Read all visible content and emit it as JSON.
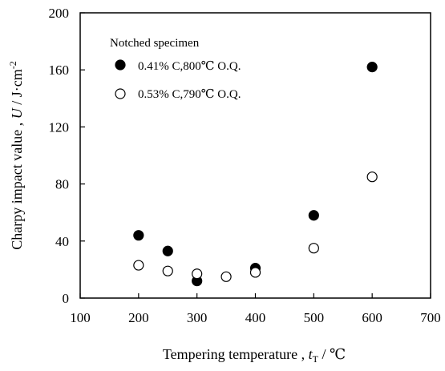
{
  "chart_data": {
    "type": "scatter",
    "title": "",
    "xlabel": "Tempering temperature , t_T / ℃",
    "xlabel_parts": {
      "text": "Tempering temperature , ",
      "symbol": "t",
      "sub": "T",
      "unit": " / ℃"
    },
    "ylabel": "Charpy impact value , U / J·cm^-2",
    "ylabel_parts": {
      "text": "Charpy impact value , ",
      "symbol": "U",
      "unit": " / J·cm",
      "sup": "-2"
    },
    "xlim": [
      100,
      700
    ],
    "ylim": [
      0,
      200
    ],
    "xticks": [
      100,
      200,
      300,
      400,
      500,
      600,
      700
    ],
    "yticks": [
      0,
      40,
      80,
      120,
      160,
      200
    ],
    "grid": false,
    "legend": {
      "title": "Notched specimen",
      "placement": "top-left"
    },
    "series": [
      {
        "name": "0.41% C,800℃ O.Q.",
        "marker": "filled-circle",
        "color": "#000000",
        "points": [
          [
            200,
            44
          ],
          [
            250,
            33
          ],
          [
            300,
            12
          ],
          [
            400,
            21
          ],
          [
            500,
            58
          ],
          [
            600,
            162
          ]
        ]
      },
      {
        "name": "0.53% C,790℃ O.Q.",
        "marker": "open-circle",
        "color": "#000000",
        "points": [
          [
            200,
            23
          ],
          [
            250,
            19
          ],
          [
            300,
            17
          ],
          [
            350,
            15
          ],
          [
            400,
            18
          ],
          [
            500,
            35
          ],
          [
            600,
            85
          ]
        ]
      }
    ]
  }
}
